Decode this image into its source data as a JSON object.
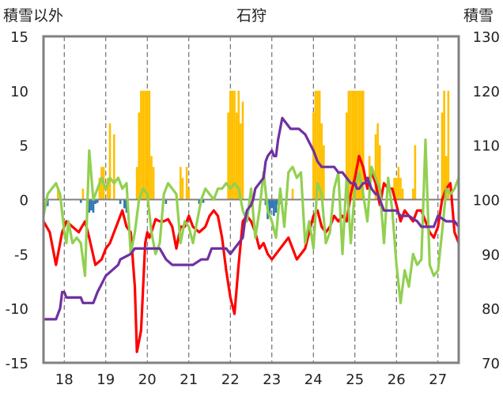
{
  "chart_data": {
    "type": "line",
    "title": "石狩",
    "y_left_label": "積雪以外",
    "y_right_label": "積雪",
    "ylim_left": [
      -15,
      15
    ],
    "ylim_right": [
      70,
      130
    ],
    "y_left_ticks": [
      "15",
      "10",
      "5",
      "0",
      "-5",
      "-10",
      "-15"
    ],
    "y_left_tick_values": [
      15,
      10,
      5,
      0,
      -5,
      -10,
      -15
    ],
    "y_right_ticks": [
      "130",
      "120",
      "110",
      "100",
      "90",
      "80",
      "70"
    ],
    "y_right_tick_values": [
      130,
      120,
      110,
      100,
      90,
      80,
      70
    ],
    "x_tick_labels": [
      "18",
      "19",
      "20",
      "21",
      "22",
      "23",
      "24",
      "25",
      "26",
      "27"
    ],
    "xlim": [
      17.5,
      27.5
    ],
    "grid": "vertical dashed at each day",
    "colors": {
      "precip_pos": "#ffc000",
      "precip_neg": "#2e75b6",
      "red": "#ff0000",
      "green": "#92d050",
      "purple": "#7030a0",
      "axis": "#808080"
    },
    "series": [
      {
        "type": "bar",
        "axis": "left",
        "color": "#ffc000",
        "x": [
          17.85,
          18.45,
          18.85,
          18.9,
          18.95,
          19.05,
          19.1,
          19.2,
          19.75,
          19.8,
          19.85,
          19.9,
          19.95,
          20.0,
          20.05,
          20.1,
          20.15,
          20.8,
          20.85,
          20.95,
          21.0,
          21.95,
          22.0,
          22.05,
          22.1,
          22.15,
          22.2,
          22.25,
          22.3,
          23.5,
          24.0,
          24.05,
          24.1,
          24.15,
          24.2,
          24.25,
          24.8,
          24.85,
          24.9,
          24.95,
          25.0,
          25.05,
          25.1,
          25.15,
          25.2,
          25.35,
          25.5,
          25.55,
          25.6,
          25.95,
          26.0,
          26.05,
          26.1,
          26.15,
          26.4,
          26.45,
          27.1,
          27.15,
          27.2,
          27.25
        ],
        "values": [
          1,
          1,
          2,
          3,
          3,
          2,
          7,
          6,
          3,
          8,
          10,
          10,
          10,
          10,
          10,
          4,
          3,
          3,
          2,
          3,
          1,
          8,
          10,
          10,
          10,
          8,
          10,
          7,
          9,
          1,
          8,
          10,
          10,
          10,
          7,
          5,
          8,
          10,
          10,
          10,
          10,
          10,
          10,
          10,
          10,
          4,
          6,
          7,
          5,
          2,
          2,
          3,
          2,
          1,
          1,
          5,
          8,
          10,
          4,
          10
        ]
      },
      {
        "type": "bar",
        "axis": "left",
        "color": "#2e75b6",
        "x": [
          17.6,
          18.4,
          18.55,
          18.6,
          18.65,
          18.7,
          18.75,
          18.8,
          19.35,
          19.45,
          19.5,
          20.45,
          21.25,
          21.35,
          22.85,
          22.9,
          22.95,
          23.0,
          23.05,
          23.1,
          23.15,
          23.2,
          23.35
        ],
        "values": [
          -0.6,
          -0.3,
          -1.0,
          -1.2,
          -1.0,
          -1.2,
          -0.4,
          -0.3,
          -0.4,
          -0.8,
          -1.2,
          -0.4,
          -0.4,
          -0.3,
          -0.5,
          -1.8,
          -1.3,
          -0.8,
          -1.5,
          -1.2,
          -0.5,
          -0.4,
          -0.5
        ]
      },
      {
        "name": "red",
        "axis": "left",
        "color": "#ff0000",
        "x": [
          17.5,
          17.65,
          17.8,
          17.95,
          18.05,
          18.2,
          18.35,
          18.5,
          18.6,
          18.75,
          18.9,
          19.0,
          19.1,
          19.2,
          19.3,
          19.4,
          19.5,
          19.6,
          19.7,
          19.75,
          19.8,
          19.85,
          19.9,
          19.95,
          20.0,
          20.05,
          20.1,
          20.2,
          20.3,
          20.4,
          20.5,
          20.6,
          20.7,
          20.8,
          20.9,
          21.0,
          21.1,
          21.25,
          21.4,
          21.5,
          21.6,
          21.7,
          21.8,
          21.9,
          22.0,
          22.1,
          22.2,
          22.3,
          22.4,
          22.5,
          22.6,
          22.7,
          22.8,
          22.9,
          23.0,
          23.2,
          23.4,
          23.6,
          23.8,
          23.9,
          24.0,
          24.1,
          24.2,
          24.3,
          24.4,
          24.5,
          24.6,
          24.7,
          24.8,
          24.9,
          25.0,
          25.1,
          25.2,
          25.3,
          25.4,
          25.5,
          25.6,
          25.7,
          25.8,
          25.9,
          26.0,
          26.1,
          26.2,
          26.3,
          26.4,
          26.5,
          26.6,
          26.7,
          26.8,
          26.9,
          27.0,
          27.1,
          27.2,
          27.3,
          27.4,
          27.5
        ],
        "values": [
          -2.0,
          -3.0,
          -6.0,
          -3.0,
          -2.0,
          -2.5,
          -3.0,
          -2.0,
          -3.5,
          -6.0,
          -5.5,
          -4.5,
          -4.0,
          -3.0,
          -2.0,
          -1.0,
          -2.5,
          -3.0,
          -8.0,
          -14.0,
          -13.0,
          -12.0,
          -8.0,
          -4.0,
          -3.0,
          -3.5,
          -3.0,
          -1.8,
          -2.0,
          -2.0,
          -1.8,
          -2.5,
          -4.5,
          -2.5,
          -2.5,
          -1.5,
          -2.5,
          -3.0,
          -2.5,
          -1.5,
          -1.0,
          -1.5,
          -3.5,
          -6.5,
          -9.0,
          -10.5,
          -6.0,
          -2.0,
          -1.5,
          -2.0,
          -3.0,
          -4.5,
          -4.0,
          -5.0,
          -5.5,
          -4.5,
          -3.5,
          -5.5,
          -4.5,
          -3.0,
          -1.5,
          -1.0,
          -2.5,
          -3.0,
          -2.5,
          -1.5,
          -2.0,
          -1.5,
          -2.0,
          0.5,
          2.0,
          4.0,
          3.0,
          1.0,
          2.5,
          1.5,
          -0.5,
          1.5,
          1.0,
          1.0,
          -0.5,
          -2.0,
          -1.0,
          -1.5,
          -2.0,
          -1.0,
          -1.0,
          -2.0,
          -3.0,
          -3.5,
          -2.5,
          0.0,
          1.0,
          1.5,
          -3.0,
          -4.0
        ]
      },
      {
        "name": "green",
        "axis": "left",
        "color": "#92d050",
        "x": [
          17.5,
          17.6,
          17.7,
          17.8,
          17.9,
          18.0,
          18.05,
          18.1,
          18.2,
          18.3,
          18.4,
          18.5,
          18.6,
          18.7,
          18.8,
          18.9,
          19.0,
          19.1,
          19.2,
          19.3,
          19.4,
          19.5,
          19.6,
          19.7,
          19.8,
          19.9,
          20.0,
          20.1,
          20.2,
          20.3,
          20.4,
          20.5,
          20.6,
          20.7,
          20.8,
          20.9,
          21.0,
          21.1,
          21.2,
          21.3,
          21.4,
          21.5,
          21.6,
          21.7,
          21.8,
          21.9,
          22.0,
          22.1,
          22.2,
          22.3,
          22.4,
          22.5,
          22.6,
          22.7,
          22.8,
          22.9,
          23.0,
          23.1,
          23.2,
          23.3,
          23.4,
          23.5,
          23.6,
          23.7,
          23.8,
          23.9,
          24.0,
          24.1,
          24.2,
          24.3,
          24.4,
          24.5,
          24.6,
          24.7,
          24.8,
          24.9,
          25.0,
          25.1,
          25.2,
          25.3,
          25.4,
          25.5,
          25.6,
          25.7,
          25.8,
          25.9,
          26.0,
          26.1,
          26.2,
          26.3,
          26.4,
          26.5,
          26.6,
          26.7,
          26.8,
          26.9,
          27.0,
          27.1,
          27.2,
          27.3,
          27.4,
          27.5
        ],
        "values": [
          -1.5,
          0.5,
          1.0,
          1.5,
          0.5,
          -3.0,
          -4.0,
          -2.0,
          -4.0,
          -3.5,
          -4.0,
          -7.0,
          4.5,
          0.0,
          1.0,
          2.0,
          1.0,
          2.0,
          1.5,
          2.0,
          1.0,
          1.5,
          -5.0,
          -3.0,
          0.0,
          1.0,
          0.5,
          -3.0,
          -5.0,
          -4.0,
          0.5,
          1.5,
          1.0,
          0.5,
          -4.0,
          -2.0,
          -2.5,
          -4.0,
          -2.0,
          0.0,
          1.0,
          0.5,
          0.0,
          1.0,
          1.0,
          1.5,
          1.0,
          1.5,
          1.0,
          -1.0,
          -2.0,
          1.0,
          -3.5,
          -1.0,
          2.5,
          -1.0,
          -2.0,
          -3.5,
          1.0,
          -2.5,
          2.5,
          3.0,
          2.0,
          2.5,
          -4.0,
          -2.0,
          -4.5,
          1.5,
          0.5,
          -4.0,
          -3.0,
          1.0,
          2.5,
          -5.0,
          2.0,
          -4.0,
          1.0,
          2.5,
          0.5,
          -2.0,
          3.0,
          2.0,
          1.0,
          -4.0,
          2.0,
          -1.0,
          -6.0,
          -9.5,
          -6.5,
          -8.0,
          -5.0,
          -6.0,
          -5.5,
          5.5,
          -6.0,
          -7.0,
          -6.5,
          -3.0,
          1.0,
          0.5,
          1.0,
          2.0
        ]
      },
      {
        "name": "purple",
        "axis": "right",
        "color": "#7030a0",
        "x": [
          17.5,
          17.8,
          17.9,
          17.95,
          18.0,
          18.05,
          18.1,
          18.2,
          18.4,
          18.45,
          18.5,
          18.7,
          18.8,
          19.0,
          19.3,
          19.35,
          19.6,
          19.7,
          19.8,
          20.3,
          20.45,
          20.6,
          20.95,
          21.0,
          21.1,
          21.3,
          21.45,
          21.5,
          21.55,
          21.6,
          21.7,
          21.8,
          21.9,
          22.0,
          22.1,
          22.2,
          22.3,
          22.35,
          22.4,
          22.5,
          22.55,
          22.6,
          22.7,
          22.8,
          22.85,
          22.9,
          23.0,
          23.05,
          23.1,
          23.15,
          23.25,
          23.35,
          23.45,
          23.55,
          23.65,
          23.8,
          24.0,
          24.1,
          24.2,
          24.5,
          24.6,
          24.7,
          24.8,
          24.9,
          25.0,
          25.05,
          25.1,
          25.2,
          25.25,
          25.3,
          25.4,
          25.5,
          25.55,
          25.7,
          26.0,
          26.1,
          26.2,
          26.3,
          26.5,
          26.6,
          26.9,
          27.0,
          27.2,
          27.3,
          27.4,
          27.5
        ],
        "values": [
          78,
          78,
          80,
          83,
          83,
          82,
          82,
          82,
          82,
          81,
          81,
          81,
          83,
          86,
          88,
          89,
          90,
          91,
          91,
          91,
          89,
          88,
          88,
          88,
          88,
          89,
          89,
          90,
          91,
          91,
          91,
          91,
          91,
          90,
          91,
          92,
          93,
          96,
          98,
          99,
          100,
          102,
          103,
          104,
          107,
          108,
          109,
          108,
          108,
          111,
          115,
          114,
          113,
          113,
          113,
          112,
          109,
          107,
          106,
          106,
          105,
          105,
          104,
          103,
          103,
          102,
          102,
          103,
          103,
          104,
          102,
          101,
          101,
          98,
          98,
          97,
          97,
          97,
          96,
          95,
          95,
          97,
          96,
          96,
          96,
          95
        ]
      }
    ]
  }
}
